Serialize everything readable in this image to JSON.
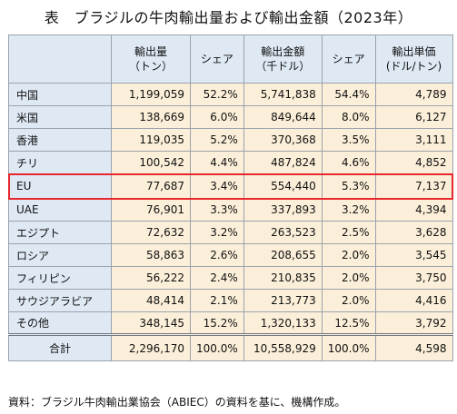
{
  "title": "表　ブラジルの牛肉輸出量および輸出金額（2023年）",
  "columns": [
    {
      "line1": "輸出量",
      "line2": "（トン）"
    },
    {
      "line1": "シェア",
      "line2": ""
    },
    {
      "line1": "輸出金額",
      "line2": "（千ドル）"
    },
    {
      "line1": "シェア",
      "line2": ""
    },
    {
      "line1": "輸出単価",
      "line2": "(ドル/トン)"
    }
  ],
  "rows": [
    {
      "name": "中国",
      "volume": "1,199,059",
      "vshare": "52.2%",
      "value": "5,741,838",
      "valshare": "54.4%",
      "price": "4,789"
    },
    {
      "name": "米国",
      "volume": "138,669",
      "vshare": "6.0%",
      "value": "849,644",
      "valshare": "8.0%",
      "price": "6,127"
    },
    {
      "name": "香港",
      "volume": "119,035",
      "vshare": "5.2%",
      "value": "370,368",
      "valshare": "3.5%",
      "price": "3,111"
    },
    {
      "name": "チリ",
      "volume": "100,542",
      "vshare": "4.4%",
      "value": "487,824",
      "valshare": "4.6%",
      "price": "4,852"
    },
    {
      "name": "EU",
      "volume": "77,687",
      "vshare": "3.4%",
      "value": "554,440",
      "valshare": "5.3%",
      "price": "7,137"
    },
    {
      "name": "UAE",
      "volume": "76,901",
      "vshare": "3.3%",
      "value": "337,893",
      "valshare": "3.2%",
      "price": "4,394"
    },
    {
      "name": "エジプト",
      "volume": "72,632",
      "vshare": "3.2%",
      "value": "263,523",
      "valshare": "2.5%",
      "price": "3,628"
    },
    {
      "name": "ロシア",
      "volume": "58,863",
      "vshare": "2.6%",
      "value": "208,655",
      "valshare": "2.0%",
      "price": "3,545"
    },
    {
      "name": "フィリピン",
      "volume": "56,222",
      "vshare": "2.4%",
      "value": "210,835",
      "valshare": "2.0%",
      "price": "3,750"
    },
    {
      "name": "サウジアラビア",
      "volume": "48,414",
      "vshare": "2.1%",
      "value": "213,773",
      "valshare": "2.0%",
      "price": "4,416"
    },
    {
      "name": "その他",
      "volume": "348,145",
      "vshare": "15.2%",
      "value": "1,320,133",
      "valshare": "12.5%",
      "price": "3,792"
    }
  ],
  "total": {
    "name": "合計",
    "volume": "2,296,170",
    "vshare": "100.0%",
    "value": "10,558,929",
    "valshare": "100.0%",
    "price": "4,598"
  },
  "source": "資料：ブラジル牛肉輸出業協会（ABIEC）の資料を基に、機構作成。",
  "colors": {
    "header_bg": "#dfe9f4",
    "cell_bg": "#fcefd9",
    "highlight": "#e8262b"
  }
}
